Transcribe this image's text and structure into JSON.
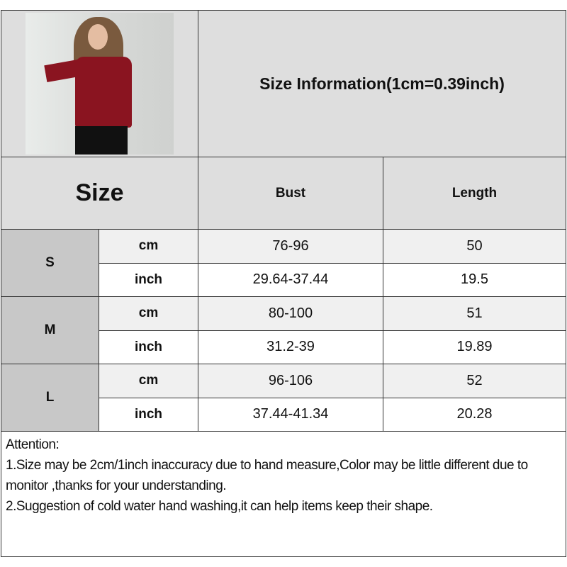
{
  "title": "Size Information(1cm=0.39inch)",
  "header": {
    "size": "Size",
    "columns": [
      "Bust",
      "Length"
    ]
  },
  "rows": [
    {
      "size": "S",
      "cm": {
        "unit": "cm",
        "bust": "76-96",
        "length": "50"
      },
      "inch": {
        "unit": "inch",
        "bust": "29.64-37.44",
        "length": "19.5"
      }
    },
    {
      "size": "M",
      "cm": {
        "unit": "cm",
        "bust": "80-100",
        "length": "51"
      },
      "inch": {
        "unit": "inch",
        "bust": "31.2-39",
        "length": "19.89"
      }
    },
    {
      "size": "L",
      "cm": {
        "unit": "cm",
        "bust": "96-106",
        "length": "52"
      },
      "inch": {
        "unit": "inch",
        "bust": "37.44-41.34",
        "length": "20.28"
      }
    }
  ],
  "notes": {
    "heading": "Attention:",
    "line1": "1.Size may be 2cm/1inch inaccuracy due to hand measure,Color may be little different due to monitor ,thanks for your understanding.",
    "line2": "2.Suggestion of cold water hand washing,it can help items keep their shape."
  },
  "colors": {
    "header_bg": "#dedede",
    "size_cell_bg": "#c8c8c8",
    "cm_row_bg": "#f0f0f0",
    "garment": "#8a1420"
  }
}
